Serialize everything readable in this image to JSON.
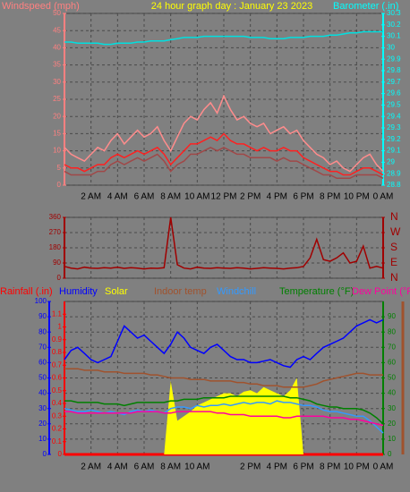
{
  "chart_data": [
    {
      "type": "line",
      "title": "24 hour graph day : January 23 2023",
      "ylabel": "Windspeed (mph)",
      "y2label": "Barometer (.in)",
      "x": [
        0,
        0.5,
        1,
        1.5,
        2,
        2.5,
        3,
        3.5,
        4,
        4.5,
        5,
        5.5,
        6,
        6.5,
        7,
        7.5,
        8,
        8.5,
        9,
        9.5,
        10,
        10.5,
        11,
        11.5,
        12,
        12.5,
        13,
        13.5,
        14,
        14.5,
        15,
        15.5,
        16,
        16.5,
        17,
        17.5,
        18,
        18.5,
        19,
        19.5,
        20,
        20.5,
        21,
        21.5,
        22,
        22.5,
        23,
        23.5,
        24
      ],
      "xlim": [
        0,
        24
      ],
      "xticks": [
        {
          "value": 2,
          "label": "2 AM"
        },
        {
          "value": 4,
          "label": "4 AM"
        },
        {
          "value": 6,
          "label": "6 AM"
        },
        {
          "value": 8,
          "label": "8 AM"
        },
        {
          "value": 10,
          "label": "10 AM"
        },
        {
          "value": 12,
          "label": "12 PM"
        },
        {
          "value": 14,
          "label": "2 PM"
        },
        {
          "value": 16,
          "label": "4 PM"
        },
        {
          "value": 18,
          "label": "6 PM"
        },
        {
          "value": 20,
          "label": "8 PM"
        },
        {
          "value": 22,
          "label": "10 PM"
        },
        {
          "value": 24,
          "label": "0 AM"
        }
      ],
      "ylim": [
        0,
        50
      ],
      "yticks": [
        0,
        5,
        10,
        15,
        20,
        25,
        30,
        35,
        40,
        45,
        50
      ],
      "ycolor": "#ff8080",
      "y2lim": [
        28.8,
        30.3
      ],
      "y2ticks": [
        28.8,
        28.9,
        29,
        29.1,
        29.2,
        29.3,
        29.4,
        29.5,
        29.6,
        29.7,
        29.8,
        29.9,
        30,
        30.1,
        30.2,
        30.3
      ],
      "y2color": "#00ffff",
      "grid": true,
      "series": [
        {
          "color": "#ff8c8c",
          "values": [
            11,
            9,
            8,
            7,
            9,
            11,
            10,
            13,
            15,
            12,
            14,
            16,
            14,
            15,
            17,
            13,
            10,
            14,
            18,
            20,
            19,
            22,
            24,
            21,
            26,
            22,
            19,
            20,
            18,
            17,
            18,
            15,
            16,
            17,
            15,
            16,
            13,
            11,
            9,
            8,
            6,
            7,
            5,
            4,
            6,
            8,
            9,
            6,
            4
          ]
        },
        {
          "color": "#a04848",
          "values": [
            4,
            3,
            3,
            3,
            3,
            4,
            4,
            6,
            7,
            6,
            7,
            8,
            7,
            8,
            9,
            7,
            4,
            6,
            7,
            9,
            9,
            10,
            11,
            10,
            11,
            10,
            9,
            9,
            8,
            8,
            8,
            8,
            7,
            8,
            7,
            7,
            6,
            5,
            4,
            3,
            3,
            2,
            2,
            2,
            3,
            3,
            3,
            3,
            2
          ]
        },
        {
          "color": "#ff2020",
          "values": [
            6,
            5,
            5,
            4,
            5,
            6,
            6,
            8,
            9,
            8,
            9,
            10,
            9,
            10,
            11,
            9,
            6,
            8,
            10,
            12,
            12,
            13,
            14,
            13,
            15,
            13,
            12,
            12,
            11,
            10,
            11,
            10,
            10,
            11,
            10,
            10,
            8,
            7,
            6,
            5,
            4,
            4,
            3,
            3,
            4,
            5,
            5,
            4,
            3
          ]
        },
        {
          "color": "#00e0e0",
          "axis": "y2",
          "values": [
            30.05,
            30.05,
            30.04,
            30.04,
            30.04,
            30.04,
            30.03,
            30.03,
            30.04,
            30.04,
            30.04,
            30.05,
            30.05,
            30.06,
            30.06,
            30.06,
            30.07,
            30.08,
            30.09,
            30.09,
            30.09,
            30.1,
            30.1,
            30.1,
            30.1,
            30.1,
            30.1,
            30.1,
            30.09,
            30.09,
            30.09,
            30.08,
            30.08,
            30.08,
            30.09,
            30.09,
            30.09,
            30.1,
            30.1,
            30.1,
            30.11,
            30.11,
            30.12,
            30.13,
            30.13,
            30.14,
            30.14,
            30.14,
            30.14
          ]
        }
      ]
    },
    {
      "type": "line",
      "x": [
        0,
        0.5,
        1,
        1.5,
        2,
        2.5,
        3,
        3.5,
        4,
        4.5,
        5,
        5.5,
        6,
        6.5,
        7,
        7.5,
        8,
        8.5,
        9,
        9.5,
        10,
        10.5,
        11,
        11.5,
        12,
        12.5,
        13,
        13.5,
        14,
        14.5,
        15,
        15.5,
        16,
        16.5,
        17,
        17.5,
        18,
        18.5,
        19,
        19.5,
        20,
        20.5,
        21,
        21.5,
        22,
        22.5,
        23,
        23.5,
        24
      ],
      "xlim": [
        0,
        24
      ],
      "xticks": [
        2,
        4,
        6,
        8,
        10,
        12,
        14,
        16,
        18,
        20,
        22
      ],
      "ylim": [
        0,
        360
      ],
      "yticks": [
        0,
        90,
        180,
        270,
        360
      ],
      "ycolor": "#a00000",
      "y2lim": [
        0,
        360
      ],
      "y2ticks": [
        {
          "value": 0,
          "label": "N"
        },
        {
          "value": 90,
          "label": "E"
        },
        {
          "value": 180,
          "label": "S"
        },
        {
          "value": 270,
          "label": "W"
        },
        {
          "value": 360,
          "label": "N"
        }
      ],
      "y2color": "#a00000",
      "grid": true,
      "series": [
        {
          "color": "#a00000",
          "values": [
            70,
            60,
            55,
            65,
            60,
            58,
            62,
            60,
            65,
            58,
            62,
            60,
            55,
            60,
            58,
            62,
            360,
            80,
            60,
            55,
            65,
            60,
            58,
            62,
            60,
            58,
            62,
            60,
            55,
            58,
            62,
            60,
            58,
            55,
            60,
            62,
            70,
            120,
            230,
            110,
            100,
            120,
            150,
            90,
            100,
            190,
            60,
            70,
            60
          ]
        }
      ]
    },
    {
      "type": "line",
      "x": [
        0,
        0.5,
        1,
        1.5,
        2,
        2.5,
        3,
        3.5,
        4,
        4.5,
        5,
        5.5,
        6,
        6.5,
        7,
        7.5,
        8,
        8.5,
        9,
        9.5,
        10,
        10.5,
        11,
        11.5,
        12,
        12.5,
        13,
        13.5,
        14,
        14.5,
        15,
        15.5,
        16,
        16.5,
        17,
        17.5,
        18,
        18.5,
        19,
        19.5,
        20,
        20.5,
        21,
        21.5,
        22,
        22.5,
        23,
        23.5,
        24
      ],
      "xlim": [
        0,
        24
      ],
      "xticks": [
        {
          "value": 2,
          "label": "2 AM"
        },
        {
          "value": 4,
          "label": "4 AM"
        },
        {
          "value": 6,
          "label": "6 AM"
        },
        {
          "value": 8,
          "label": "8 AM"
        },
        {
          "value": 10,
          "label": "10 AM"
        },
        {
          "value": 14,
          "label": "2 PM"
        },
        {
          "value": 16,
          "label": "4 PM"
        },
        {
          "value": 18,
          "label": "6 PM"
        },
        {
          "value": 20,
          "label": "8 PM"
        },
        {
          "value": 22,
          "label": "10 PM"
        },
        {
          "value": 24,
          "label": "0 AM"
        }
      ],
      "ylim": [
        0,
        100
      ],
      "yticks": [
        0,
        10,
        20,
        30,
        40,
        50,
        60,
        70,
        80,
        90,
        100
      ],
      "ycolor": "#0000ff",
      "y3lim": [
        0,
        1.2
      ],
      "y3ticks": [
        0,
        0.1,
        0.2,
        0.3,
        0.4,
        0.5,
        0.6,
        0.7,
        0.8,
        0.9,
        1,
        1.1
      ],
      "y3color": "#ff0000",
      "y2lim": [
        0,
        100
      ],
      "y2ticks": [
        0,
        10,
        20,
        30,
        40,
        50,
        60,
        70,
        80,
        90
      ],
      "y2color": "#008000",
      "grid": true,
      "series": [
        {
          "name": "Rainfall (.in)",
          "color": "#ff0000",
          "axis": "y3",
          "values": [
            0,
            0,
            0,
            0,
            0,
            0,
            0,
            0,
            0,
            0,
            0,
            0,
            0,
            0,
            0,
            0,
            0,
            0,
            0,
            0,
            0,
            0,
            0,
            0,
            0,
            0,
            0,
            0,
            0,
            0,
            0,
            0,
            0,
            0,
            0,
            0,
            0,
            0,
            0,
            0,
            0,
            0,
            0,
            0,
            0,
            0,
            0,
            0,
            0
          ]
        },
        {
          "name": "Humidity",
          "color": "#0000ff",
          "values": [
            62,
            68,
            70,
            66,
            62,
            60,
            62,
            64,
            74,
            84,
            80,
            76,
            78,
            74,
            70,
            66,
            72,
            80,
            76,
            70,
            68,
            66,
            70,
            72,
            68,
            64,
            62,
            62,
            60,
            60,
            61,
            62,
            60,
            58,
            57,
            62,
            64,
            62,
            66,
            70,
            72,
            74,
            76,
            80,
            84,
            86,
            88,
            86,
            88
          ]
        },
        {
          "name": "Solar",
          "color": "#ffff00",
          "area": true,
          "values": [
            0,
            0,
            0,
            0,
            0,
            0,
            0,
            0,
            0,
            0,
            0,
            0,
            0,
            0,
            0,
            0,
            48,
            22,
            25,
            28,
            32,
            34,
            36,
            38,
            40,
            40,
            38,
            41,
            42,
            40,
            44,
            42,
            40,
            38,
            42,
            50,
            0,
            0,
            0,
            0,
            0,
            0,
            0,
            0,
            0,
            0,
            0,
            0,
            0
          ]
        },
        {
          "name": "Indoor temp",
          "color": "#a0522d",
          "axis": "y2",
          "values": [
            56,
            56,
            56,
            55,
            55,
            55,
            54,
            54,
            54,
            53,
            53,
            53,
            53,
            52,
            52,
            51,
            50,
            50,
            50,
            49,
            49,
            49,
            48,
            48,
            48,
            48,
            47,
            47,
            46,
            46,
            45,
            45,
            45,
            44,
            44,
            44,
            44,
            45,
            46,
            48,
            49,
            50,
            51,
            52,
            53,
            53,
            52,
            52,
            52
          ]
        },
        {
          "name": "Windchill",
          "color": "#3399ff",
          "axis": "y2",
          "values": [
            30,
            29,
            28,
            28,
            29,
            28,
            27,
            28,
            27,
            26,
            28,
            29,
            28,
            29,
            28,
            27,
            30,
            31,
            31,
            30,
            32,
            31,
            32,
            32,
            33,
            32,
            33,
            34,
            33,
            34,
            34,
            33,
            35,
            34,
            34,
            33,
            32,
            32,
            31,
            29,
            28,
            28,
            27,
            26,
            25,
            25,
            22,
            18,
            14
          ]
        },
        {
          "name": "Temperature (°F)",
          "color": "#008000",
          "axis": "y2",
          "values": [
            35,
            35,
            34,
            34,
            34,
            34,
            33,
            33,
            33,
            32,
            33,
            34,
            34,
            34,
            34,
            34,
            35,
            35,
            36,
            36,
            36,
            37,
            37,
            37,
            37,
            38,
            38,
            38,
            38,
            38,
            38,
            38,
            38,
            38,
            37,
            37,
            36,
            35,
            33,
            32,
            31,
            31,
            30,
            30,
            30,
            29,
            27,
            24,
            20
          ]
        },
        {
          "name": "Dew Point (°F)",
          "color": "#ff00a0",
          "axis": "y2",
          "values": [
            28,
            28,
            27,
            27,
            27,
            27,
            27,
            27,
            27,
            27,
            27,
            28,
            28,
            28,
            28,
            27,
            27,
            28,
            28,
            28,
            28,
            28,
            28,
            27,
            27,
            26,
            26,
            26,
            25,
            25,
            25,
            25,
            25,
            24,
            24,
            25,
            25,
            25,
            25,
            25,
            24,
            24,
            24,
            23,
            23,
            22,
            21,
            20,
            19
          ]
        }
      ]
    }
  ]
}
